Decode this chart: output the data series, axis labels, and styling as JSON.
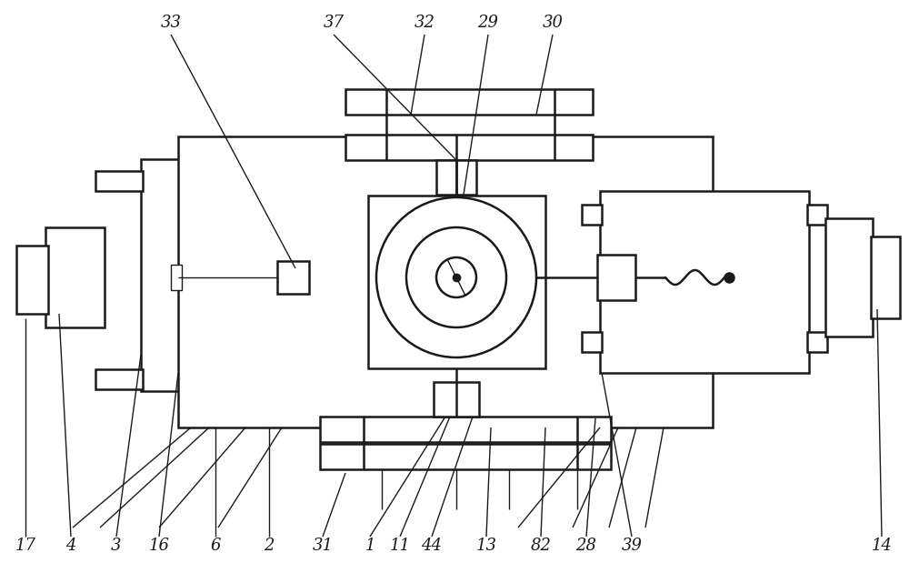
{
  "bg_color": "#ffffff",
  "line_color": "#1a1a1a",
  "fig_width": 10.0,
  "fig_height": 6.19,
  "lw_main": 1.8,
  "lw_thin": 1.0,
  "label_fontsize": 13
}
